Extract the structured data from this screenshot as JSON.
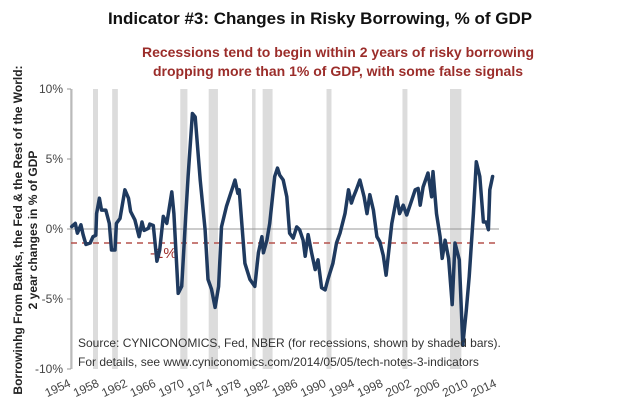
{
  "chart_data": {
    "type": "line",
    "title": "Indicator #3:  Changes in Risky Borrowing, % of GDP",
    "subtitle": [
      "Recessions tend to begin within 2 years of risky borrowing",
      "dropping more than 1% of GDP, with some false signals"
    ],
    "xlabel": "",
    "ylabel": [
      "Borrowinhg From Banks, the Fed & the Rest of the World:",
      "2 year changes in % of GDP"
    ],
    "xlim": [
      1954.5,
      2014.8
    ],
    "ylim": [
      -10,
      10
    ],
    "x_ticks": [
      "1954",
      "1958",
      "1962",
      "1966",
      "1970",
      "1974",
      "1978",
      "1982",
      "1986",
      "1990",
      "1994",
      "1998",
      "2002",
      "2006",
      "2010",
      "2014"
    ],
    "y_ticks": [
      {
        "value": 10,
        "label": "10%"
      },
      {
        "value": 5,
        "label": "5%"
      },
      {
        "value": 0,
        "label": "0%"
      },
      {
        "value": -5,
        "label": "-5%"
      },
      {
        "value": -10,
        "label": "-10%"
      }
    ],
    "grid": false,
    "threshold": {
      "value": -1,
      "label": "-1%",
      "color": "#b5524d"
    },
    "recessions": [
      [
        1953.6,
        1954.4
      ],
      [
        1957.6,
        1958.3
      ],
      [
        1960.3,
        1961.1
      ],
      [
        1969.9,
        1970.9
      ],
      [
        1973.9,
        1975.2
      ],
      [
        1980.0,
        1980.5
      ],
      [
        1981.5,
        1982.9
      ],
      [
        1990.5,
        1991.2
      ],
      [
        2001.2,
        2001.9
      ],
      [
        2007.9,
        2009.5
      ]
    ],
    "series": [
      {
        "color": "#1f3a5f",
        "points": [
          [
            1954.6,
            0.17
          ],
          [
            1955.1,
            0.4
          ],
          [
            1955.4,
            -0.3
          ],
          [
            1955.9,
            0.3
          ],
          [
            1956.2,
            -0.4
          ],
          [
            1956.6,
            -1.1
          ],
          [
            1957.2,
            -1.0
          ],
          [
            1957.6,
            -0.55
          ],
          [
            1958.0,
            -0.45
          ],
          [
            1958.1,
            1.1
          ],
          [
            1958.5,
            2.2
          ],
          [
            1958.8,
            1.35
          ],
          [
            1959.4,
            1.35
          ],
          [
            1959.9,
            0.4
          ],
          [
            1960.2,
            -1.5
          ],
          [
            1960.7,
            -1.5
          ],
          [
            1960.9,
            0.4
          ],
          [
            1961.4,
            0.75
          ],
          [
            1962.1,
            2.8
          ],
          [
            1962.6,
            2.2
          ],
          [
            1962.9,
            1.25
          ],
          [
            1963.5,
            0.65
          ],
          [
            1964.1,
            -0.55
          ],
          [
            1964.5,
            0.5
          ],
          [
            1964.8,
            -0.1
          ],
          [
            1965.4,
            0.05
          ],
          [
            1965.6,
            0.35
          ],
          [
            1966.1,
            0.25
          ],
          [
            1966.6,
            -2.3
          ],
          [
            1967.0,
            -1.5
          ],
          [
            1967.5,
            0.9
          ],
          [
            1968.0,
            0.4
          ],
          [
            1968.7,
            2.65
          ],
          [
            1969.0,
            1.1
          ],
          [
            1969.6,
            -4.6
          ],
          [
            1970.1,
            -4.1
          ],
          [
            1970.6,
            0.4
          ],
          [
            1971.0,
            3.75
          ],
          [
            1971.6,
            8.25
          ],
          [
            1972.0,
            8.0
          ],
          [
            1972.7,
            3.5
          ],
          [
            1973.4,
            -0.05
          ],
          [
            1973.8,
            -3.6
          ],
          [
            1974.3,
            -4.3
          ],
          [
            1974.8,
            -5.6
          ],
          [
            1975.3,
            -4.1
          ],
          [
            1975.7,
            0.15
          ],
          [
            1976.4,
            1.6
          ],
          [
            1977.0,
            2.55
          ],
          [
            1977.3,
            3.0
          ],
          [
            1977.6,
            3.5
          ],
          [
            1978.0,
            2.55
          ],
          [
            1978.2,
            2.8
          ],
          [
            1979.0,
            -2.45
          ],
          [
            1979.7,
            -3.6
          ],
          [
            1980.4,
            -4.1
          ],
          [
            1980.9,
            -1.7
          ],
          [
            1981.4,
            -0.55
          ],
          [
            1981.6,
            -1.7
          ],
          [
            1982.1,
            -0.8
          ],
          [
            1982.5,
            0.4
          ],
          [
            1983.2,
            3.75
          ],
          [
            1983.6,
            4.35
          ],
          [
            1983.9,
            3.85
          ],
          [
            1984.4,
            3.5
          ],
          [
            1984.9,
            2.3
          ],
          [
            1985.3,
            -0.3
          ],
          [
            1985.8,
            -0.65
          ],
          [
            1986.3,
            0.15
          ],
          [
            1986.7,
            -0.05
          ],
          [
            1987.2,
            -0.8
          ],
          [
            1987.5,
            -1.95
          ],
          [
            1987.9,
            -0.4
          ],
          [
            1988.4,
            -1.7
          ],
          [
            1988.9,
            -2.9
          ],
          [
            1989.3,
            -2.2
          ],
          [
            1989.8,
            -4.2
          ],
          [
            1990.3,
            -4.35
          ],
          [
            1990.7,
            -3.6
          ],
          [
            1991.4,
            -2.45
          ],
          [
            1991.9,
            -1.0
          ],
          [
            1992.4,
            -0.3
          ],
          [
            1993.1,
            1.1
          ],
          [
            1993.6,
            2.8
          ],
          [
            1994.0,
            1.85
          ],
          [
            1994.3,
            2.3
          ],
          [
            1994.7,
            2.8
          ],
          [
            1995.2,
            3.5
          ],
          [
            1995.8,
            2.3
          ],
          [
            1996.2,
            1.1
          ],
          [
            1996.6,
            2.45
          ],
          [
            1997.1,
            1.35
          ],
          [
            1997.6,
            -0.55
          ],
          [
            1998.0,
            -0.9
          ],
          [
            1998.5,
            -1.9
          ],
          [
            1998.9,
            -3.3
          ],
          [
            1999.7,
            0.4
          ],
          [
            2000.4,
            2.3
          ],
          [
            2000.8,
            1.1
          ],
          [
            2001.3,
            1.7
          ],
          [
            2001.8,
            1.0
          ],
          [
            2002.5,
            2.05
          ],
          [
            2003.0,
            2.8
          ],
          [
            2003.4,
            2.9
          ],
          [
            2003.7,
            1.7
          ],
          [
            2004.1,
            3.0
          ],
          [
            2004.8,
            4.0
          ],
          [
            2005.3,
            2.3
          ],
          [
            2005.5,
            4.1
          ],
          [
            2006.0,
            1.1
          ],
          [
            2006.5,
            -0.55
          ],
          [
            2006.8,
            -2.1
          ],
          [
            2007.2,
            -0.8
          ],
          [
            2007.7,
            -2.1
          ],
          [
            2008.2,
            -5.4
          ],
          [
            2008.6,
            -1.0
          ],
          [
            2009.2,
            -2.2
          ],
          [
            2009.7,
            -8.3
          ],
          [
            2010.2,
            -5.8
          ],
          [
            2010.6,
            -3.4
          ],
          [
            2011.2,
            1.1
          ],
          [
            2011.6,
            4.8
          ],
          [
            2012.1,
            3.75
          ],
          [
            2012.6,
            0.5
          ],
          [
            2013.0,
            0.5
          ],
          [
            2013.3,
            -0.05
          ],
          [
            2013.5,
            2.8
          ],
          [
            2013.9,
            3.75
          ]
        ]
      }
    ],
    "source": [
      "Source:  CYNICONOMICS, Fed, NBER (for recessions, shown by shaded bars).",
      "For details, see www.cyniconomics.com/2014/05/05/tech-notes-3-indicators"
    ]
  }
}
